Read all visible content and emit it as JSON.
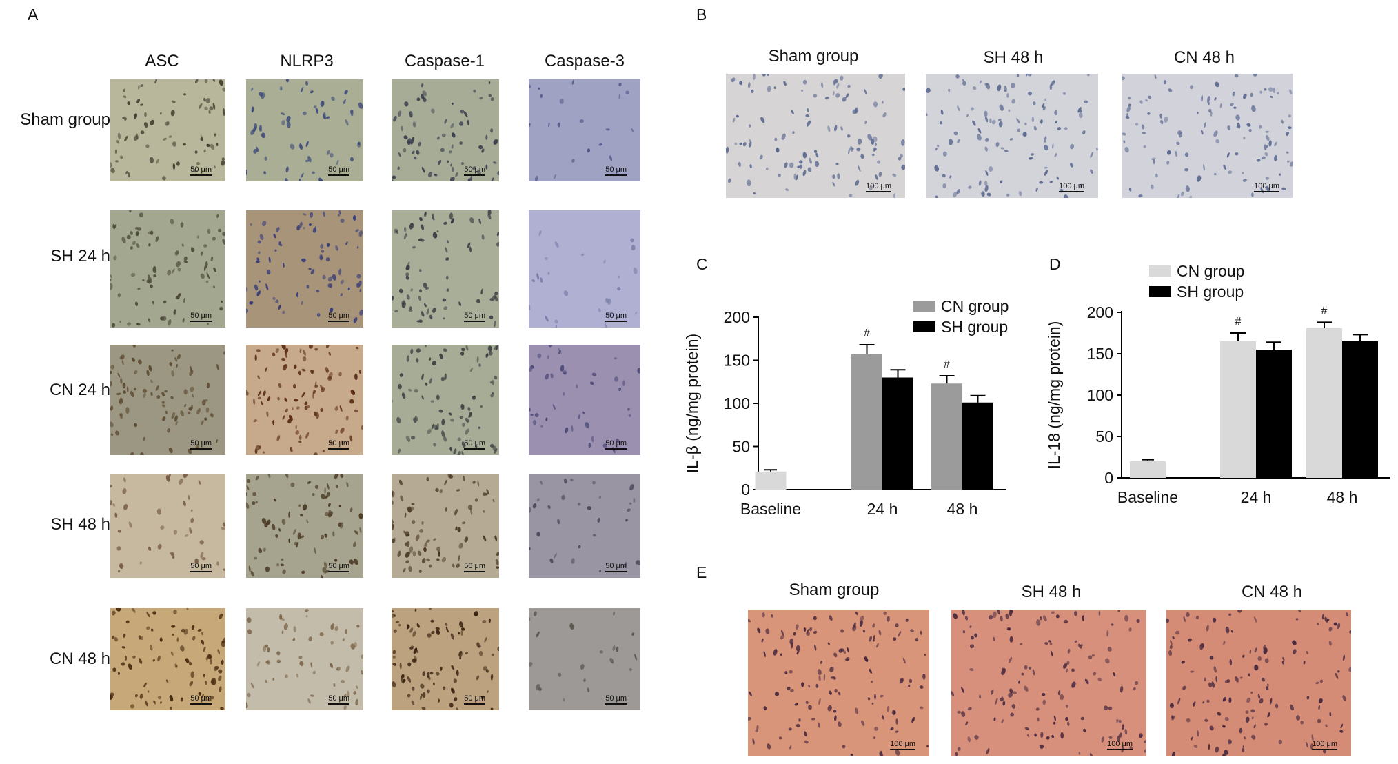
{
  "panels": {
    "A": {
      "label": "A",
      "columns": [
        "ASC",
        "NLRP3",
        "Caspase-1",
        "Caspase-3"
      ],
      "rows": [
        "Sham group",
        "SH 24 h",
        "CN 24 h",
        "SH 48 h",
        "CN 48 h"
      ],
      "scale": "50 μm"
    },
    "B": {
      "label": "B",
      "titles": [
        "Sham group",
        "SH 48 h",
        "CN 48 h"
      ],
      "scale": "100 μm"
    },
    "C": {
      "label": "C"
    },
    "D": {
      "label": "D"
    },
    "E": {
      "label": "E",
      "titles": [
        "Sham group",
        "SH 48 h",
        "CN 48 h"
      ],
      "scale": "100 μm"
    }
  },
  "colors": {
    "cn_C": "#9b9b9b",
    "cn_D": "#d9d9d9",
    "baseline": "#d9d9d9",
    "sh": "#000000"
  },
  "chart_data": [
    {
      "type": "bar",
      "panel": "C",
      "ylabel": "IL-β (ng/mg protein)",
      "xlabel": "",
      "categories": [
        "Baseline",
        "24 h",
        "48 h"
      ],
      "ylim": [
        0,
        200
      ],
      "yticks": [
        0,
        50,
        100,
        150,
        200
      ],
      "legend_position": "top-right",
      "series": [
        {
          "name": "CN group",
          "values": [
            null,
            157,
            123
          ],
          "errors": [
            null,
            11,
            9
          ]
        },
        {
          "name": "SH group",
          "values": [
            null,
            130,
            101
          ],
          "errors": [
            null,
            9,
            8
          ]
        }
      ],
      "baseline": {
        "value": 21,
        "error": 2
      },
      "annotations": [
        {
          "text": "#",
          "category": "24 h",
          "series": "CN group"
        },
        {
          "text": "#",
          "category": "48 h",
          "series": "CN group"
        }
      ]
    },
    {
      "type": "bar",
      "panel": "D",
      "ylabel": "IL-18 (ng/mg protein)",
      "xlabel": "",
      "categories": [
        "Baseline",
        "24 h",
        "48 h"
      ],
      "ylim": [
        0,
        200
      ],
      "yticks": [
        0,
        50,
        100,
        150,
        200
      ],
      "legend_position": "top-left",
      "series": [
        {
          "name": "CN group",
          "values": [
            null,
            165,
            181
          ],
          "errors": [
            null,
            10,
            7
          ]
        },
        {
          "name": "SH group",
          "values": [
            null,
            155,
            165
          ],
          "errors": [
            null,
            9,
            8
          ]
        }
      ],
      "baseline": {
        "value": 20,
        "error": 2
      },
      "annotations": [
        {
          "text": "#",
          "category": "24 h",
          "series": "CN group"
        },
        {
          "text": "#",
          "category": "48 h",
          "series": "CN group"
        }
      ]
    }
  ]
}
